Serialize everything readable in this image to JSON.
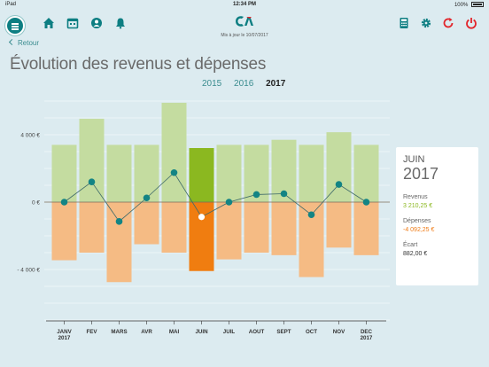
{
  "status": {
    "device": "iPad",
    "time": "12:34 PM",
    "battery": "100%"
  },
  "header": {
    "icons": [
      "menu-icon",
      "home-icon",
      "calendar-icon",
      "profile-icon",
      "bell-icon",
      "calculator-icon",
      "gear-icon",
      "refresh-icon",
      "power-icon"
    ],
    "updated": "Mis à jour le 10/07/2017"
  },
  "back_label": "Retour",
  "page_title": "Évolution des revenus et dépenses",
  "years": [
    "2015",
    "2016",
    "2017"
  ],
  "selected_year": "2017",
  "colors": {
    "income": "#c4dca0",
    "income_selected": "#8bb820",
    "expense": "#f5bb84",
    "expense_selected": "#f07d10",
    "balance_line": "#3f6a6a",
    "balance_point": "#138484"
  },
  "chart_data": {
    "type": "bar",
    "categories": [
      "JANV",
      "FEV",
      "MARS",
      "AVR",
      "MAI",
      "JUIN",
      "JUIL",
      "AOUT",
      "SEPT",
      "OCT",
      "NOV",
      "DEC"
    ],
    "category_years": {
      "JANV": "2017",
      "DEC": "2017"
    },
    "series": [
      {
        "name": "Revenus",
        "values": [
          3400,
          4950,
          3400,
          3400,
          5900,
          3210,
          3400,
          3400,
          3700,
          3400,
          4150,
          3400
        ]
      },
      {
        "name": "Dépenses",
        "values": [
          -3450,
          -3000,
          -4750,
          -2500,
          -3000,
          -4092,
          -3400,
          -3000,
          -3150,
          -4450,
          -2700,
          -3150
        ]
      },
      {
        "type": "line",
        "values": [
          0,
          1200,
          -1150,
          250,
          1750,
          -882,
          0,
          450,
          500,
          -750,
          1050,
          0
        ]
      }
    ],
    "ylim": [
      -7000,
      5900
    ],
    "yticks": [
      {
        "value": 4000,
        "label": "4 000 €"
      },
      {
        "value": 0,
        "label": "0 €"
      },
      {
        "value": -4000,
        "label": "- 4 000 €"
      }
    ],
    "selected": "JUIN"
  },
  "detail": {
    "month": "JUIN",
    "year": "2017",
    "revenus_label": "Revenus",
    "revenus_value": "3 210,25 €",
    "depenses_label": "Dépenses",
    "depenses_value": "-4 092,25 €",
    "ecart_label": "Écart",
    "ecart_value": "882,00 €"
  }
}
